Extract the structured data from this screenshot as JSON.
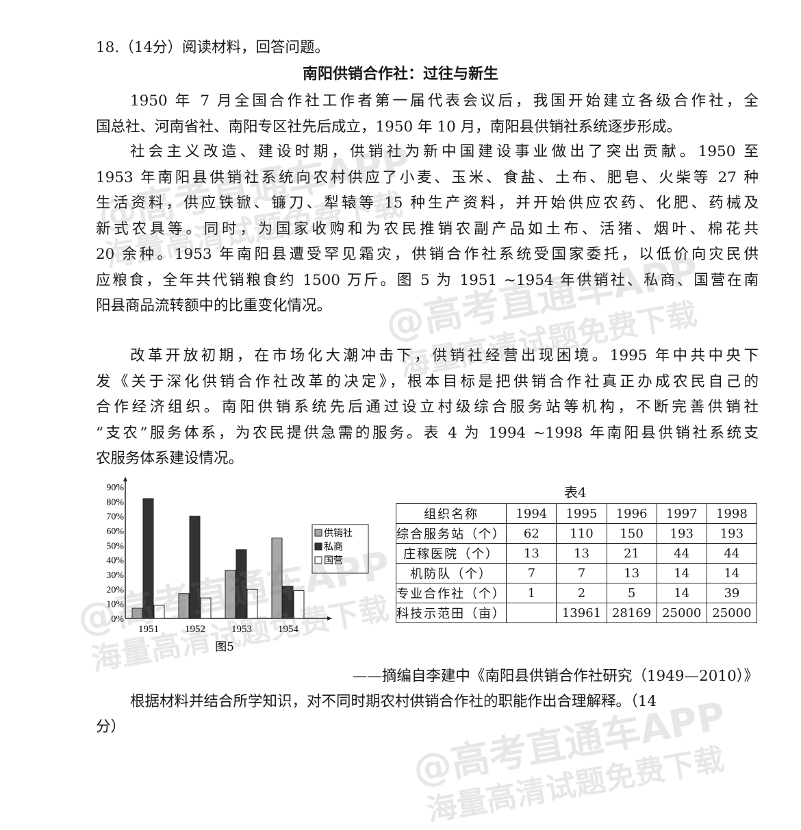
{
  "question": {
    "header": "18.（14分）阅读材料，回答问题。",
    "title": "南阳供销合作社：过往与新生",
    "paragraphs": [
      [
        "1950 年 7 月全国合作社工作者第一届代表会议后，我国开始建立各级合作社，全",
        "国总社、河南省社、南阳专区社先后成立，1950 年 10 月，南阳县供销社系统逐步形成。"
      ],
      [
        "社会主义改造、建设时期，供销社为新中国建设事业做出了突出贡献。1950 至",
        "1953 年南阳县供销社系统向农村供应了小麦、玉米、食盐、土布、肥皂、火柴等 27 种",
        "生活资料，供应铁锨、镰刀、犁辕等 15 种生产资料，并开始供应农药、化肥、药械及",
        "新式农具等。同时，为国家收购和为农民推销农副产品如土布、活猪、烟叶、棉花共",
        "20 余种。1953 年南阳县遭受罕见霜灾，供销合作社系统受国家委托，以低价向灾民供",
        "应粮食，全年共代销粮食约 1500 万斤。图 5 为 1951 ~1954 年供销社、私商、国营在南",
        "阳县商品流转额中的比重变化情况。"
      ],
      [
        "改革开放初期，在市场化大潮冲击下，供销社经营出现困境。1995 年中共中央下",
        "发《关于深化供销合作社改革的决定》，根本目标是把供销合作社真正办成农民自己的",
        "合作经济组织。南阳供销系统先后通过设立村级综合服务站等机构，不断完善供销社",
        "“支农”服务体系，为农民提供急需的服务。表 4 为 1994 ~1998 年南阳县供销社系统支",
        "农服务体系建设情况。"
      ]
    ],
    "source": "——摘编自李建中《南阳县供销合作社研究（1949—2010）》",
    "prompt": [
      "根据材料并结合所学知识，对不同时期农村供销合作社的职能作出合理解释。（14",
      "分）"
    ]
  },
  "chart_data": {
    "type": "bar",
    "title": "图5",
    "categories": [
      "1951",
      "1952",
      "1953",
      "1954"
    ],
    "yticks": [
      "0%",
      "10%",
      "20%",
      "30%",
      "40%",
      "50%",
      "60%",
      "70%",
      "80%",
      "90%"
    ],
    "ylim": [
      0,
      90
    ],
    "legend_position": "right",
    "series": [
      {
        "name": "供销社",
        "color": "#a8a8a8",
        "values": [
          7,
          17,
          33,
          55
        ]
      },
      {
        "name": "私商",
        "color": "#333333",
        "values": [
          82,
          70,
          47,
          22
        ]
      },
      {
        "name": "国营",
        "color": "#ffffff",
        "values": [
          9,
          14,
          20,
          19
        ]
      }
    ]
  },
  "table": {
    "caption": "表4",
    "header": [
      "组织名称",
      "1994",
      "1995",
      "1996",
      "1997",
      "1998"
    ],
    "rows": [
      [
        "综合服务站（个）",
        "62",
        "110",
        "150",
        "193",
        "193"
      ],
      [
        "庄稼医院（个）",
        "13",
        "13",
        "21",
        "44",
        "44"
      ],
      [
        "机防队（个）",
        "7",
        "7",
        "13",
        "14",
        "14"
      ],
      [
        "专业合作社（个）",
        "1",
        "2",
        "5",
        "14",
        "39"
      ],
      [
        "科技示范田（亩）",
        "",
        "13961",
        "28169",
        "25000",
        "25000"
      ]
    ]
  },
  "watermark": [
    "@高考直通车APP",
    "海量高清试题免费下载"
  ]
}
